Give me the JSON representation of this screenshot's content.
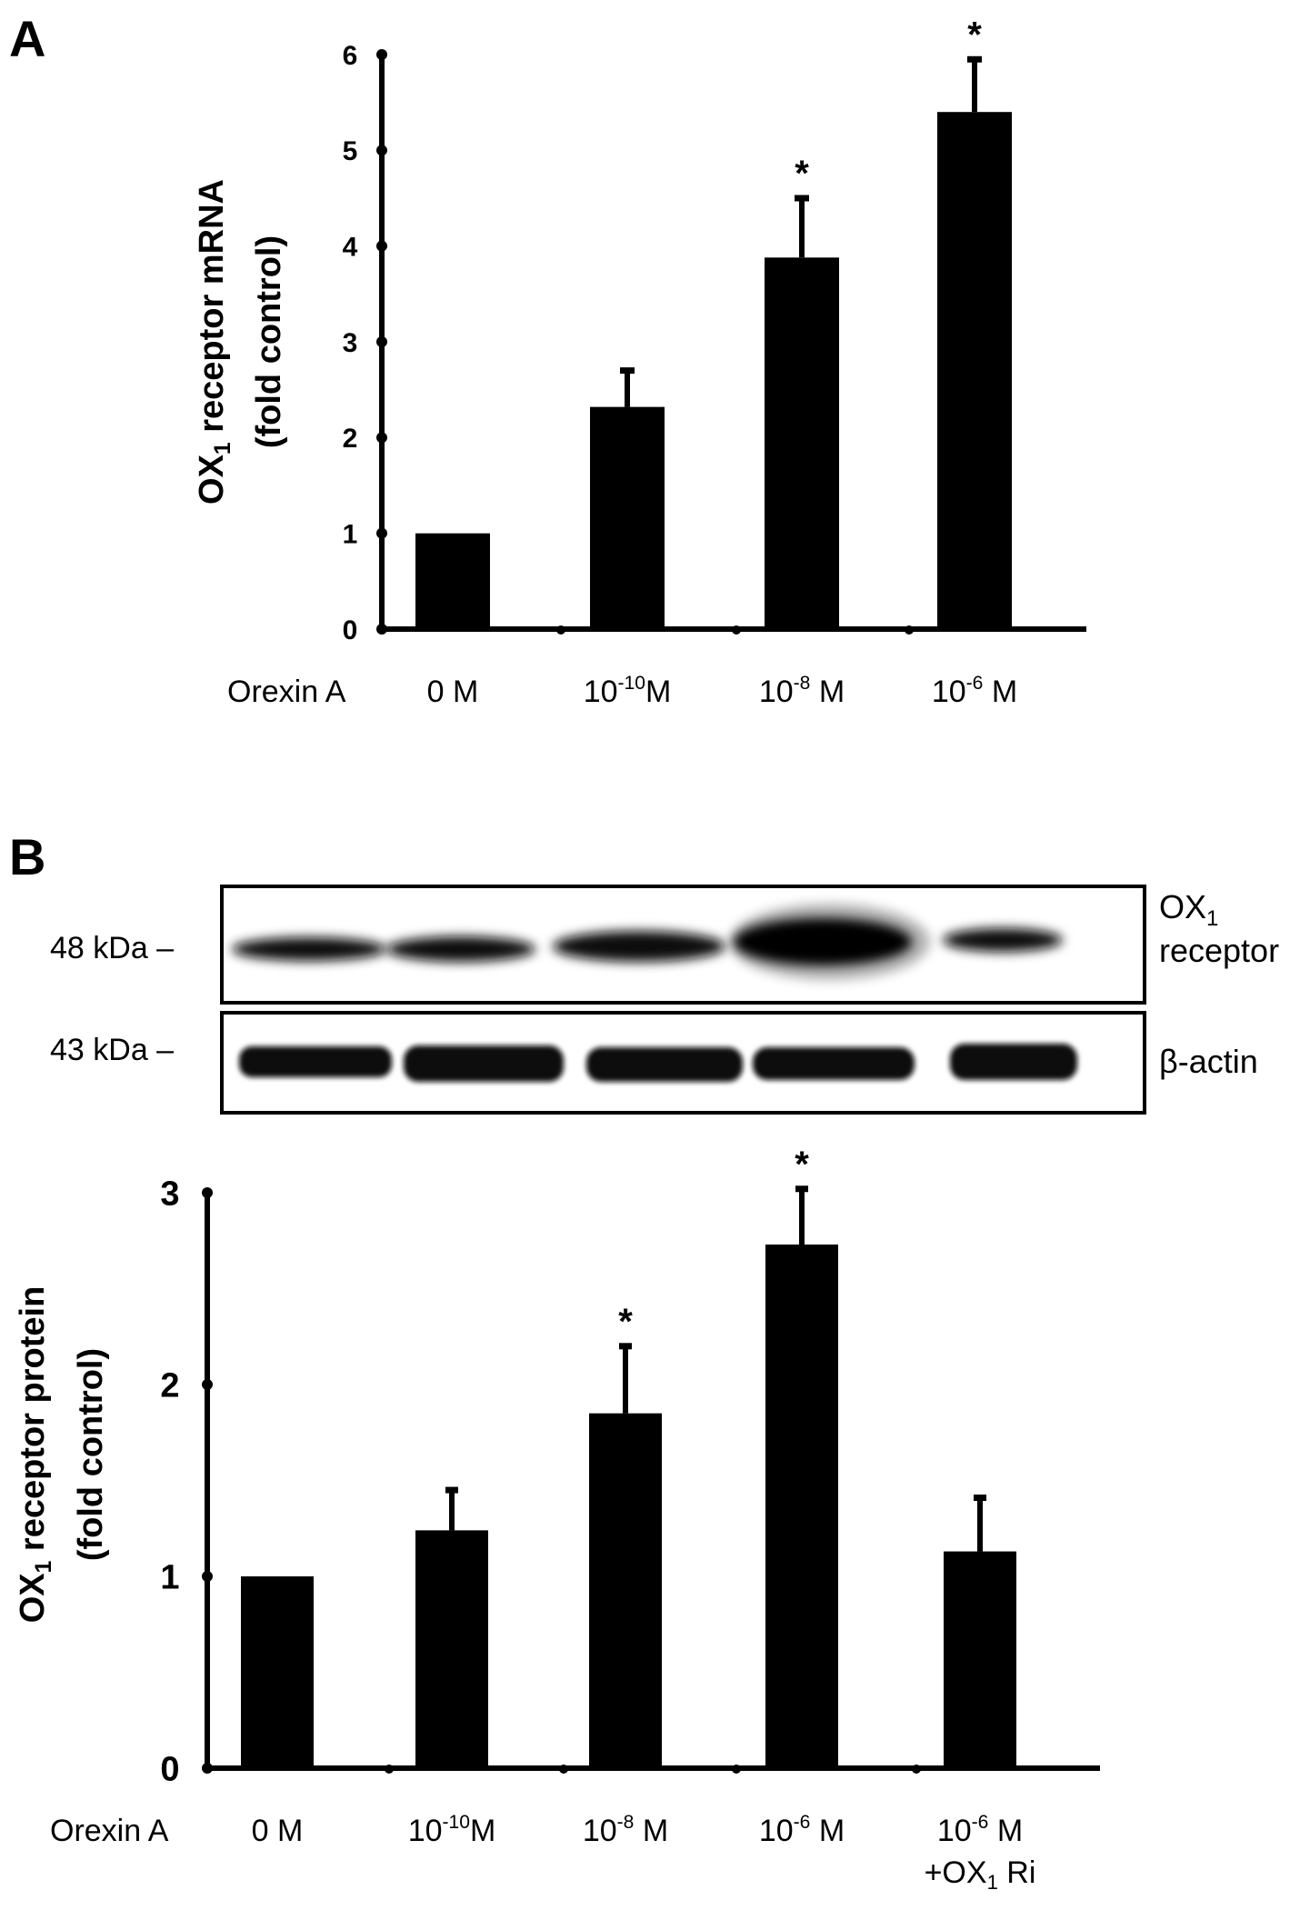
{
  "panels": {
    "a": {
      "letter": "A"
    },
    "b": {
      "letter": "B"
    }
  },
  "blot": {
    "markers": [
      {
        "label": "48 kDa"
      },
      {
        "label": "43 kDa"
      }
    ],
    "bands": [
      {
        "label_main": "OX",
        "label_sub": "1",
        "label_line2": "receptor"
      },
      {
        "label_main": "β-actin"
      }
    ]
  },
  "chart_data": [
    {
      "type": "bar",
      "panel": "A",
      "title": "",
      "ylabel": {
        "main": "OX",
        "sub": "1",
        "rest": " receptor mRNA",
        "line2": "(fold control)"
      },
      "xlabel": "Orexin A",
      "categories": [
        {
          "base": "0 M"
        },
        {
          "base": "10",
          "sup": "-10",
          "after": "M"
        },
        {
          "base": "10",
          "sup": "-8",
          "after": " M"
        },
        {
          "base": "10",
          "sup": "-6",
          "after": " M"
        }
      ],
      "values": [
        1.0,
        2.32,
        3.88,
        5.4
      ],
      "errors": [
        0.0,
        0.38,
        0.62,
        0.55
      ],
      "significance": [
        "",
        "",
        "*",
        "*"
      ],
      "ylim": [
        0,
        6
      ],
      "yticks": [
        0,
        1,
        2,
        3,
        4,
        5,
        6
      ],
      "bar_color": "#000000"
    },
    {
      "type": "bar",
      "panel": "B",
      "title": "",
      "ylabel": {
        "main": "OX",
        "sub": "1",
        "rest": " receptor protein",
        "line2": "(fold control)"
      },
      "xlabel": "Orexin A",
      "categories": [
        {
          "base": "0 M"
        },
        {
          "base": "10",
          "sup": "-10",
          "after": "M"
        },
        {
          "base": "10",
          "sup": "-8",
          "after": " M"
        },
        {
          "base": "10",
          "sup": "-6",
          "after": " M"
        },
        {
          "base": "10",
          "sup": "-6",
          "after": " M",
          "line2_main": "+OX",
          "line2_sub": "1",
          "line2_rest": " Ri"
        }
      ],
      "values": [
        1.0,
        1.24,
        1.85,
        2.73,
        1.13
      ],
      "errors": [
        0.0,
        0.21,
        0.35,
        0.29,
        0.28
      ],
      "significance": [
        "",
        "",
        "*",
        "*",
        ""
      ],
      "ylim": [
        0,
        3
      ],
      "yticks": [
        0,
        1,
        2,
        3
      ],
      "bar_color": "#000000"
    }
  ]
}
